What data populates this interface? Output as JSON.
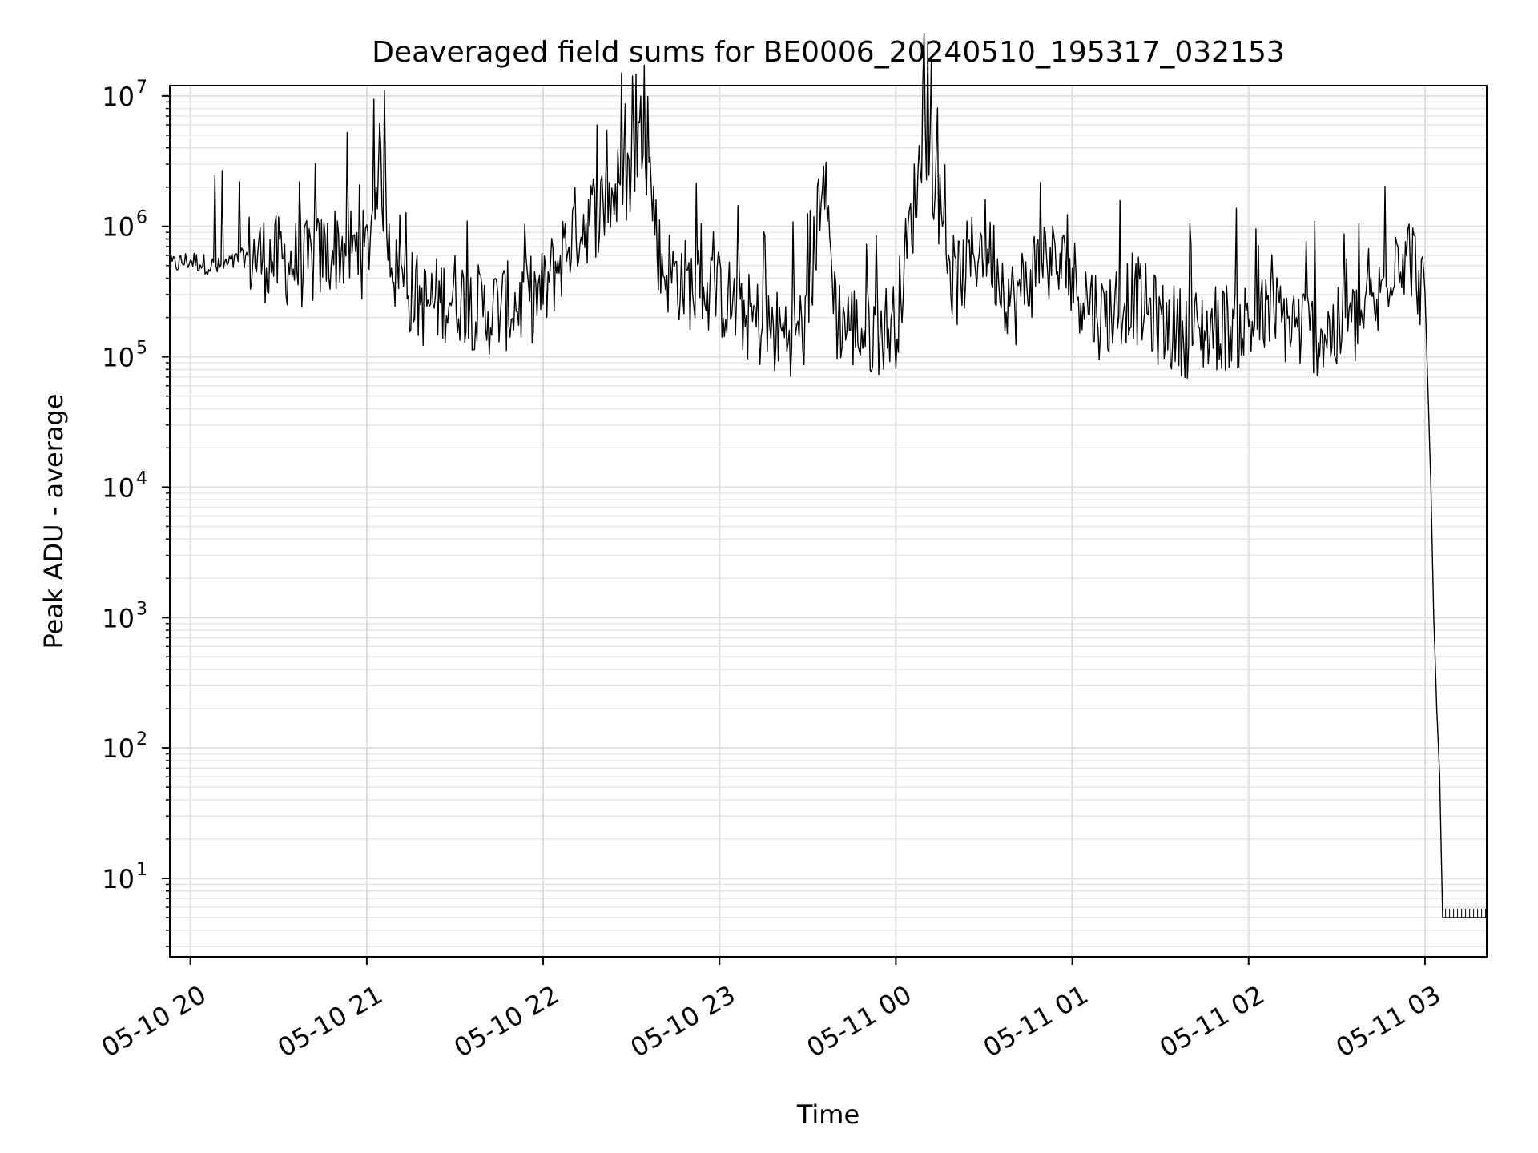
{
  "chart_data": {
    "type": "line",
    "title": "Deaveraged field sums for BE0006_20240510_195317_032153",
    "xlabel": "Time",
    "ylabel": "Peak ADU - average",
    "yscale": "log",
    "ylim": [
      2.5,
      12000000
    ],
    "xlim": [
      "2024-05-10 19:53",
      "2024-05-11 03:21"
    ],
    "grid": true,
    "x_ticks": [
      {
        "x": "2024-05-10 20:00",
        "label": "05-10 20"
      },
      {
        "x": "2024-05-10 21:00",
        "label": "05-10 21"
      },
      {
        "x": "2024-05-10 22:00",
        "label": "05-10 22"
      },
      {
        "x": "2024-05-10 23:00",
        "label": "05-10 23"
      },
      {
        "x": "2024-05-11 00:00",
        "label": "05-11 00"
      },
      {
        "x": "2024-05-11 01:00",
        "label": "05-11 01"
      },
      {
        "x": "2024-05-11 02:00",
        "label": "05-11 02"
      },
      {
        "x": "2024-05-11 03:00",
        "label": "05-11 03"
      }
    ],
    "y_ticks": [
      {
        "value": 10,
        "base": "10",
        "exp": "1"
      },
      {
        "value": 100,
        "base": "10",
        "exp": "2"
      },
      {
        "value": 1000,
        "base": "10",
        "exp": "3"
      },
      {
        "value": 10000,
        "base": "10",
        "exp": "4"
      },
      {
        "value": 100000,
        "base": "10",
        "exp": "5"
      },
      {
        "value": 1000000,
        "base": "10",
        "exp": "6"
      },
      {
        "value": 10000000,
        "base": "10",
        "exp": "7"
      }
    ],
    "series": [
      {
        "color": "#000000",
        "x": [
          "2024-05-10 19:53",
          "2024-05-10 20:00",
          "2024-05-10 20:10",
          "2024-05-10 20:20",
          "2024-05-10 20:30",
          "2024-05-10 20:40",
          "2024-05-10 20:50",
          "2024-05-10 21:00",
          "2024-05-10 21:04",
          "2024-05-10 21:10",
          "2024-05-10 21:20",
          "2024-05-10 21:30",
          "2024-05-10 21:40",
          "2024-05-10 21:50",
          "2024-05-10 22:00",
          "2024-05-10 22:10",
          "2024-05-10 22:20",
          "2024-05-10 22:30",
          "2024-05-10 22:34",
          "2024-05-10 22:40",
          "2024-05-10 22:50",
          "2024-05-10 23:00",
          "2024-05-10 23:10",
          "2024-05-10 23:20",
          "2024-05-10 23:30",
          "2024-05-10 23:35",
          "2024-05-10 23:40",
          "2024-05-10 23:50",
          "2024-05-11 00:00",
          "2024-05-11 00:10",
          "2024-05-11 00:20",
          "2024-05-11 00:30",
          "2024-05-11 00:40",
          "2024-05-11 00:50",
          "2024-05-11 01:00",
          "2024-05-11 01:10",
          "2024-05-11 01:20",
          "2024-05-11 01:30",
          "2024-05-11 01:40",
          "2024-05-11 01:50",
          "2024-05-11 02:00",
          "2024-05-11 02:10",
          "2024-05-11 02:20",
          "2024-05-11 02:30",
          "2024-05-11 02:40",
          "2024-05-11 02:44",
          "2024-05-11 02:50",
          "2024-05-11 02:55",
          "2024-05-11 03:00",
          "2024-05-11 03:02",
          "2024-05-11 03:03",
          "2024-05-11 03:04",
          "2024-05-11 03:05",
          "2024-05-11 03:06",
          "2024-05-11 03:07",
          "2024-05-11 03:21"
        ],
        "y": [
          500000,
          550000,
          480000,
          600000,
          550000,
          500000,
          700000,
          600000,
          3300000,
          400000,
          250000,
          300000,
          220000,
          250000,
          300000,
          900000,
          1400000,
          2500000,
          6500000,
          500000,
          350000,
          300000,
          200000,
          150000,
          170000,
          3000000,
          200000,
          150000,
          180000,
          5500000,
          350000,
          800000,
          250000,
          600000,
          400000,
          200000,
          300000,
          180000,
          150000,
          170000,
          180000,
          200000,
          160000,
          150000,
          200000,
          250000,
          700000,
          600000,
          300000,
          10000,
          1000,
          200,
          60,
          5,
          5,
          5
        ]
      }
    ]
  }
}
